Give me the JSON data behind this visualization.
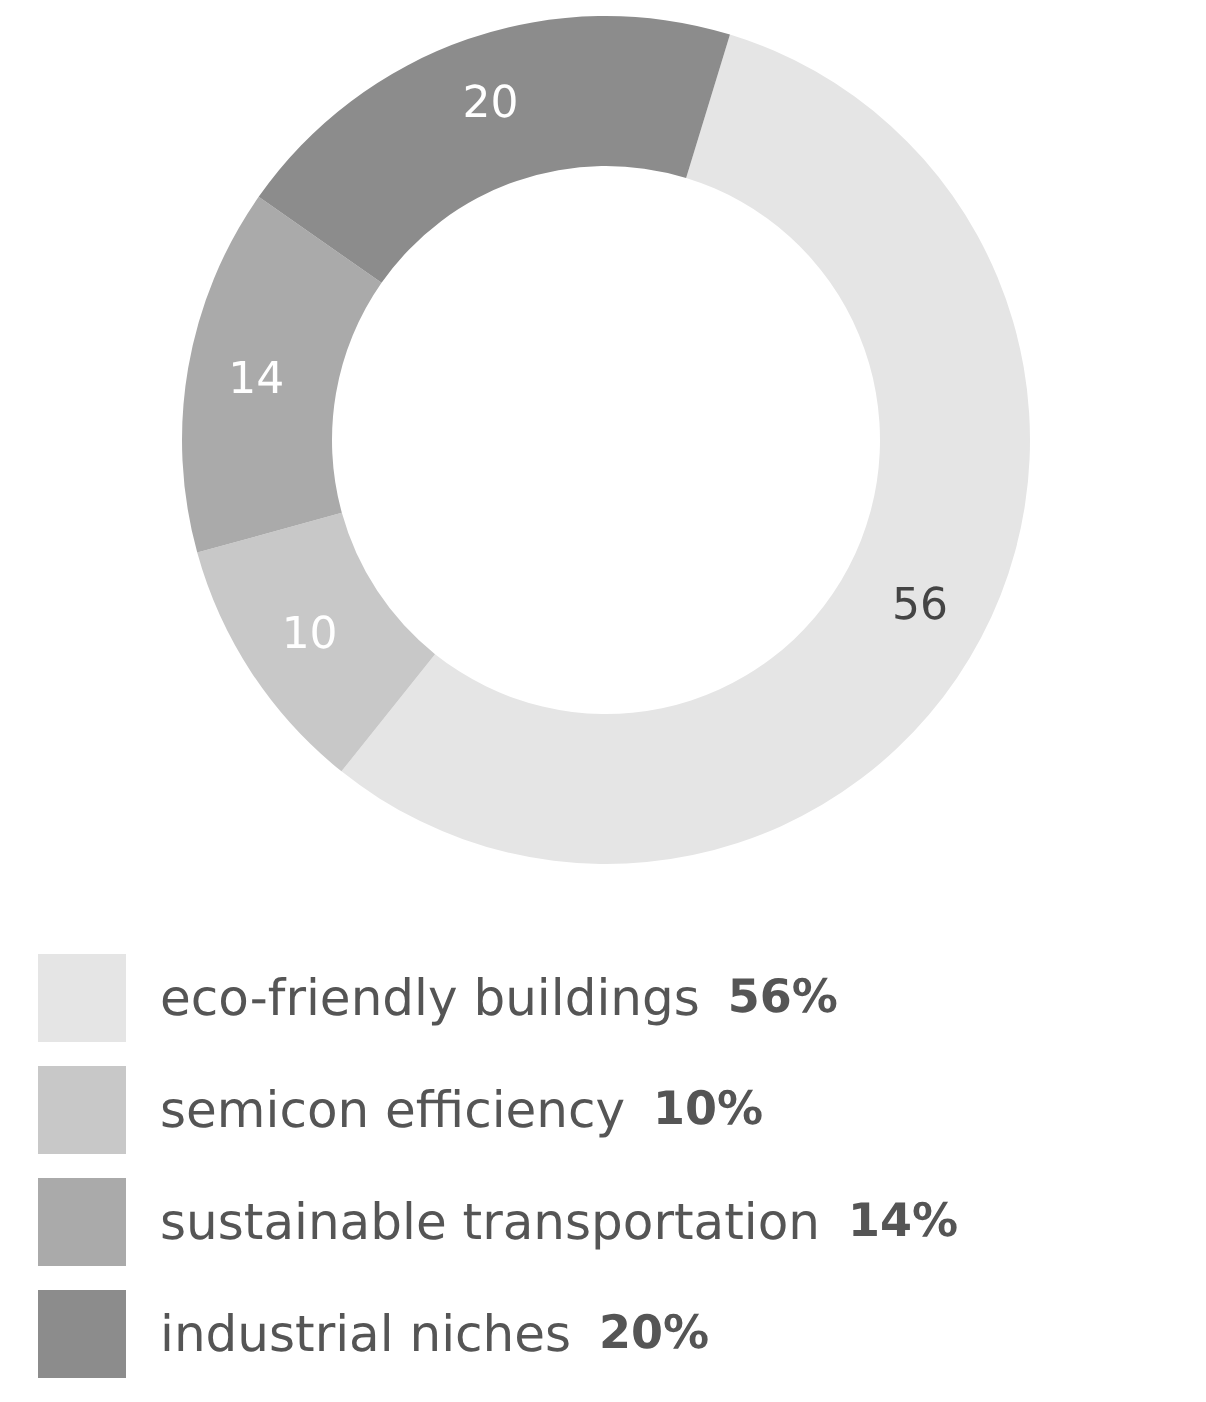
{
  "chart_data": {
    "type": "donut",
    "categories": [
      "eco-friendly buildings 56%",
      "semicon efficiency 10%",
      "sustainable transportation 14%",
      "industrial niches 20%"
    ],
    "values": [
      56,
      10,
      14,
      20
    ],
    "colors": [
      "#e5e5e5",
      "#c8c8c8",
      "#aaaaaa",
      "#8c8c8c"
    ],
    "data_labels": true,
    "legend": "bottom"
  }
}
